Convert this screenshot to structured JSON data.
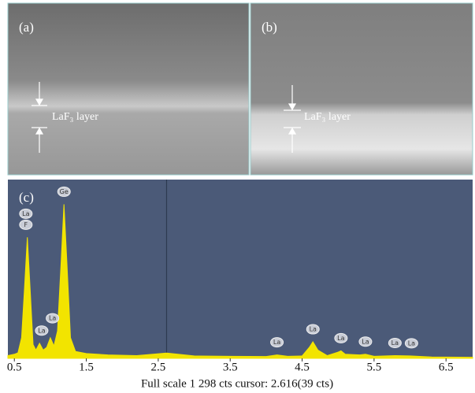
{
  "panels": [
    {
      "label": "(a)",
      "annotation": "LaF₃ layer"
    },
    {
      "label": "(b)",
      "annotation": "LaF₃ layer"
    }
  ],
  "chart_data": {
    "type": "area",
    "label": "(c)",
    "caption": "Full scale 1 298 cts cursor: 2.616(39 cts)",
    "cursor": 2.616,
    "color": "#f2e400",
    "background": "#4b5a78",
    "xlim": [
      0.41,
      6.87
    ],
    "ylim": [
      0,
      1300
    ],
    "xticks": [
      0.5,
      1.5,
      2.5,
      3.5,
      4.5,
      5.5,
      6.5
    ],
    "x": [
      0.41,
      0.5,
      0.55,
      0.6,
      0.64,
      0.68,
      0.72,
      0.76,
      0.8,
      0.85,
      0.9,
      0.95,
      1.0,
      1.05,
      1.1,
      1.15,
      1.19,
      1.23,
      1.28,
      1.35,
      1.5,
      1.8,
      2.2,
      2.616,
      3.0,
      3.5,
      4.0,
      4.15,
      4.3,
      4.5,
      4.6,
      4.65,
      4.72,
      4.85,
      5.0,
      5.04,
      5.1,
      5.3,
      5.38,
      5.5,
      5.79,
      6.0,
      6.3,
      6.87
    ],
    "values": [
      20,
      30,
      40,
      150,
      500,
      880,
      500,
      100,
      60,
      110,
      60,
      80,
      150,
      90,
      200,
      700,
      1120,
      700,
      150,
      50,
      35,
      25,
      20,
      39,
      18,
      15,
      14,
      25,
      15,
      18,
      80,
      120,
      60,
      20,
      45,
      55,
      30,
      25,
      30,
      15,
      20,
      18,
      10,
      8
    ],
    "peak_labels": [
      {
        "label": "F",
        "x": 0.66
      },
      {
        "label": "La",
        "x": 0.66
      },
      {
        "label": "La",
        "x": 0.88
      },
      {
        "label": "La",
        "x": 1.03
      },
      {
        "label": "Ge",
        "x": 1.19
      },
      {
        "label": "La",
        "x": 4.15
      },
      {
        "label": "La",
        "x": 4.65
      },
      {
        "label": "La",
        "x": 5.04
      },
      {
        "label": "La",
        "x": 5.38
      },
      {
        "label": "La",
        "x": 5.79
      },
      {
        "label": "La",
        "x": 6.02
      }
    ]
  }
}
